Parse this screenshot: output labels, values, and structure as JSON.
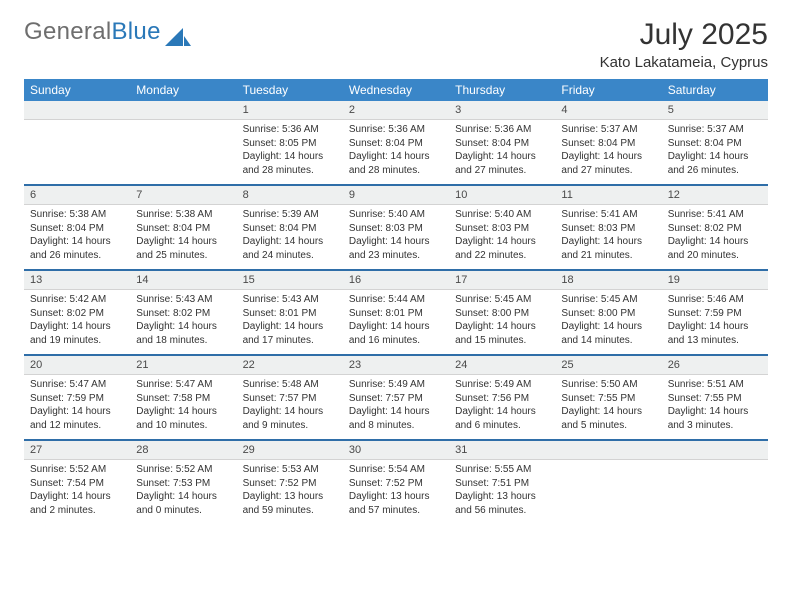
{
  "brand": {
    "text1": "General",
    "text2": "Blue",
    "logo_fill": "#2a78b8"
  },
  "header": {
    "month": "July 2025",
    "location": "Kato Lakatameia, Cyprus"
  },
  "day_header_bg": "#3a86c8",
  "num_row_bg": "#eef0f0",
  "border_top_color": "#2f6ea8",
  "days": [
    "Sunday",
    "Monday",
    "Tuesday",
    "Wednesday",
    "Thursday",
    "Friday",
    "Saturday"
  ],
  "weeks": [
    {
      "nums": [
        "",
        "",
        "1",
        "2",
        "3",
        "4",
        "5"
      ],
      "cells": [
        null,
        null,
        {
          "sr": "Sunrise: 5:36 AM",
          "ss": "Sunset: 8:05 PM",
          "d1": "Daylight: 14 hours",
          "d2": "and 28 minutes."
        },
        {
          "sr": "Sunrise: 5:36 AM",
          "ss": "Sunset: 8:04 PM",
          "d1": "Daylight: 14 hours",
          "d2": "and 28 minutes."
        },
        {
          "sr": "Sunrise: 5:36 AM",
          "ss": "Sunset: 8:04 PM",
          "d1": "Daylight: 14 hours",
          "d2": "and 27 minutes."
        },
        {
          "sr": "Sunrise: 5:37 AM",
          "ss": "Sunset: 8:04 PM",
          "d1": "Daylight: 14 hours",
          "d2": "and 27 minutes."
        },
        {
          "sr": "Sunrise: 5:37 AM",
          "ss": "Sunset: 8:04 PM",
          "d1": "Daylight: 14 hours",
          "d2": "and 26 minutes."
        }
      ]
    },
    {
      "nums": [
        "6",
        "7",
        "8",
        "9",
        "10",
        "11",
        "12"
      ],
      "cells": [
        {
          "sr": "Sunrise: 5:38 AM",
          "ss": "Sunset: 8:04 PM",
          "d1": "Daylight: 14 hours",
          "d2": "and 26 minutes."
        },
        {
          "sr": "Sunrise: 5:38 AM",
          "ss": "Sunset: 8:04 PM",
          "d1": "Daylight: 14 hours",
          "d2": "and 25 minutes."
        },
        {
          "sr": "Sunrise: 5:39 AM",
          "ss": "Sunset: 8:04 PM",
          "d1": "Daylight: 14 hours",
          "d2": "and 24 minutes."
        },
        {
          "sr": "Sunrise: 5:40 AM",
          "ss": "Sunset: 8:03 PM",
          "d1": "Daylight: 14 hours",
          "d2": "and 23 minutes."
        },
        {
          "sr": "Sunrise: 5:40 AM",
          "ss": "Sunset: 8:03 PM",
          "d1": "Daylight: 14 hours",
          "d2": "and 22 minutes."
        },
        {
          "sr": "Sunrise: 5:41 AM",
          "ss": "Sunset: 8:03 PM",
          "d1": "Daylight: 14 hours",
          "d2": "and 21 minutes."
        },
        {
          "sr": "Sunrise: 5:41 AM",
          "ss": "Sunset: 8:02 PM",
          "d1": "Daylight: 14 hours",
          "d2": "and 20 minutes."
        }
      ]
    },
    {
      "nums": [
        "13",
        "14",
        "15",
        "16",
        "17",
        "18",
        "19"
      ],
      "cells": [
        {
          "sr": "Sunrise: 5:42 AM",
          "ss": "Sunset: 8:02 PM",
          "d1": "Daylight: 14 hours",
          "d2": "and 19 minutes."
        },
        {
          "sr": "Sunrise: 5:43 AM",
          "ss": "Sunset: 8:02 PM",
          "d1": "Daylight: 14 hours",
          "d2": "and 18 minutes."
        },
        {
          "sr": "Sunrise: 5:43 AM",
          "ss": "Sunset: 8:01 PM",
          "d1": "Daylight: 14 hours",
          "d2": "and 17 minutes."
        },
        {
          "sr": "Sunrise: 5:44 AM",
          "ss": "Sunset: 8:01 PM",
          "d1": "Daylight: 14 hours",
          "d2": "and 16 minutes."
        },
        {
          "sr": "Sunrise: 5:45 AM",
          "ss": "Sunset: 8:00 PM",
          "d1": "Daylight: 14 hours",
          "d2": "and 15 minutes."
        },
        {
          "sr": "Sunrise: 5:45 AM",
          "ss": "Sunset: 8:00 PM",
          "d1": "Daylight: 14 hours",
          "d2": "and 14 minutes."
        },
        {
          "sr": "Sunrise: 5:46 AM",
          "ss": "Sunset: 7:59 PM",
          "d1": "Daylight: 14 hours",
          "d2": "and 13 minutes."
        }
      ]
    },
    {
      "nums": [
        "20",
        "21",
        "22",
        "23",
        "24",
        "25",
        "26"
      ],
      "cells": [
        {
          "sr": "Sunrise: 5:47 AM",
          "ss": "Sunset: 7:59 PM",
          "d1": "Daylight: 14 hours",
          "d2": "and 12 minutes."
        },
        {
          "sr": "Sunrise: 5:47 AM",
          "ss": "Sunset: 7:58 PM",
          "d1": "Daylight: 14 hours",
          "d2": "and 10 minutes."
        },
        {
          "sr": "Sunrise: 5:48 AM",
          "ss": "Sunset: 7:57 PM",
          "d1": "Daylight: 14 hours",
          "d2": "and 9 minutes."
        },
        {
          "sr": "Sunrise: 5:49 AM",
          "ss": "Sunset: 7:57 PM",
          "d1": "Daylight: 14 hours",
          "d2": "and 8 minutes."
        },
        {
          "sr": "Sunrise: 5:49 AM",
          "ss": "Sunset: 7:56 PM",
          "d1": "Daylight: 14 hours",
          "d2": "and 6 minutes."
        },
        {
          "sr": "Sunrise: 5:50 AM",
          "ss": "Sunset: 7:55 PM",
          "d1": "Daylight: 14 hours",
          "d2": "and 5 minutes."
        },
        {
          "sr": "Sunrise: 5:51 AM",
          "ss": "Sunset: 7:55 PM",
          "d1": "Daylight: 14 hours",
          "d2": "and 3 minutes."
        }
      ]
    },
    {
      "nums": [
        "27",
        "28",
        "29",
        "30",
        "31",
        "",
        ""
      ],
      "cells": [
        {
          "sr": "Sunrise: 5:52 AM",
          "ss": "Sunset: 7:54 PM",
          "d1": "Daylight: 14 hours",
          "d2": "and 2 minutes."
        },
        {
          "sr": "Sunrise: 5:52 AM",
          "ss": "Sunset: 7:53 PM",
          "d1": "Daylight: 14 hours",
          "d2": "and 0 minutes."
        },
        {
          "sr": "Sunrise: 5:53 AM",
          "ss": "Sunset: 7:52 PM",
          "d1": "Daylight: 13 hours",
          "d2": "and 59 minutes."
        },
        {
          "sr": "Sunrise: 5:54 AM",
          "ss": "Sunset: 7:52 PM",
          "d1": "Daylight: 13 hours",
          "d2": "and 57 minutes."
        },
        {
          "sr": "Sunrise: 5:55 AM",
          "ss": "Sunset: 7:51 PM",
          "d1": "Daylight: 13 hours",
          "d2": "and 56 minutes."
        },
        null,
        null
      ]
    }
  ]
}
